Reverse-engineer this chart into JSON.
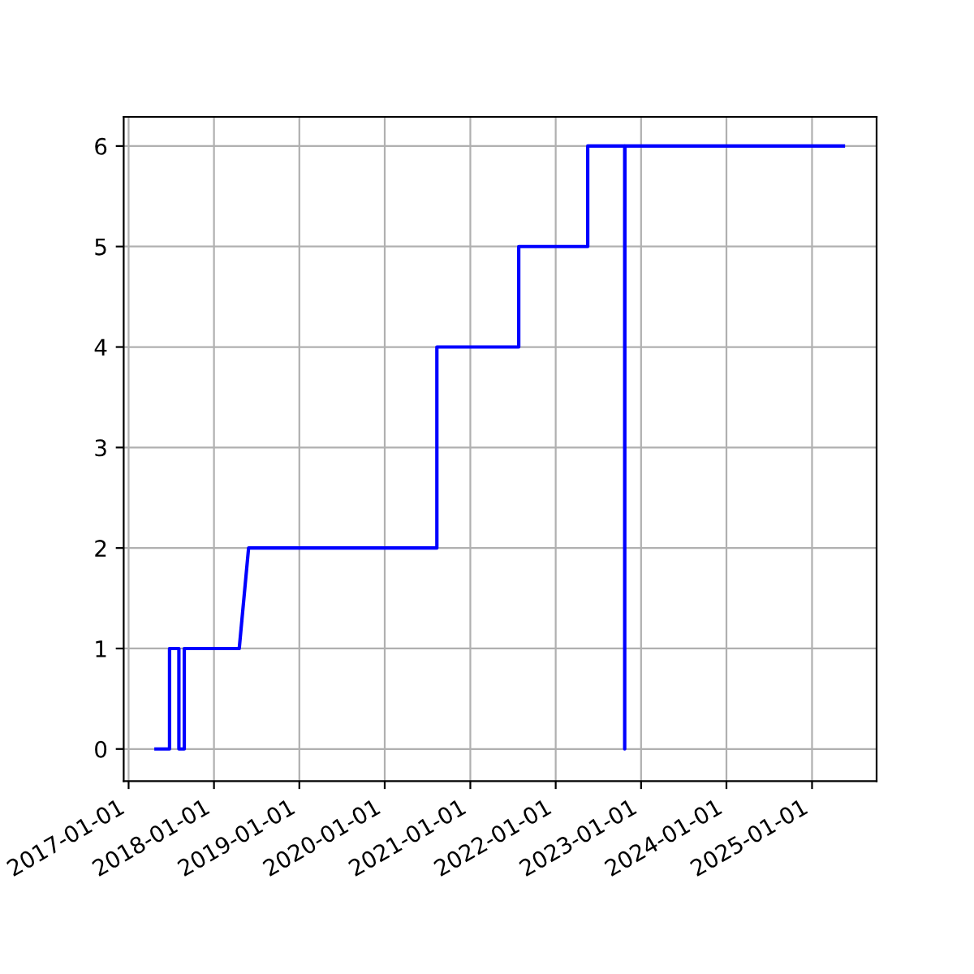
{
  "chart_data": {
    "type": "line",
    "x": [
      "2017-04-28",
      "2017-06-25",
      "2017-06-25",
      "2017-08-04",
      "2017-08-04",
      "2017-08-27",
      "2017-08-27",
      "2018-04-19",
      "2018-05-29",
      "2020-08-11",
      "2020-08-11",
      "2021-07-27",
      "2021-07-27",
      "2022-05-18",
      "2022-05-18",
      "2022-10-23",
      "2022-10-23",
      "2022-10-24",
      "2025-05-15"
    ],
    "series": [
      {
        "color": "#0000ff",
        "values": [
          0,
          0,
          1,
          1,
          0,
          0,
          1,
          1,
          2,
          2,
          4,
          4,
          5,
          5,
          6,
          6,
          0,
          6,
          6
        ]
      }
    ],
    "xlim": [
      "2016-12-11",
      "2025-10-04"
    ],
    "xticks": [
      {
        "value": "2017-01-01",
        "label": "2017-01-01"
      },
      {
        "value": "2018-01-01",
        "label": "2018-01-01"
      },
      {
        "value": "2019-01-01",
        "label": "2019-01-01"
      },
      {
        "value": "2020-01-01",
        "label": "2020-01-01"
      },
      {
        "value": "2021-01-01",
        "label": "2021-01-01"
      },
      {
        "value": "2022-01-01",
        "label": "2022-01-01"
      },
      {
        "value": "2023-01-01",
        "label": "2023-01-01"
      },
      {
        "value": "2024-01-01",
        "label": "2024-01-01"
      },
      {
        "value": "2025-01-01",
        "label": "2025-01-01"
      }
    ],
    "ylim": [
      -0.32,
      6.29
    ],
    "yticks": [
      0,
      1,
      2,
      3,
      4,
      5,
      6
    ],
    "grid": true,
    "line_style": "solid"
  }
}
